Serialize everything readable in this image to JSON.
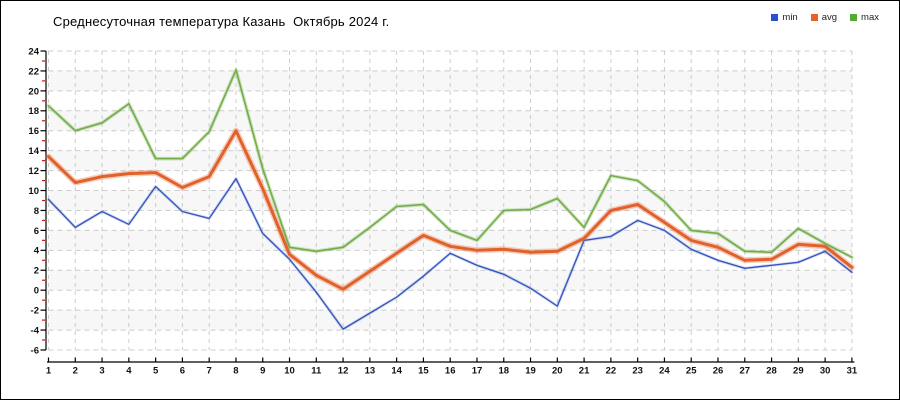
{
  "title": "Среднесуточная температура Казань  Октябрь 2024 г.",
  "legend": [
    {
      "label": "min",
      "color": "#2a50cc"
    },
    {
      "label": "avg",
      "color": "#e8632a"
    },
    {
      "label": "max",
      "color": "#55ab2f"
    }
  ],
  "chart_data": {
    "type": "line",
    "title": "Среднесуточная температура Казань  Октябрь 2024 г.",
    "xlabel": "",
    "ylabel": "",
    "x": [
      1,
      2,
      3,
      4,
      5,
      6,
      7,
      8,
      9,
      10,
      11,
      12,
      13,
      14,
      15,
      16,
      17,
      18,
      19,
      20,
      21,
      22,
      23,
      24,
      25,
      26,
      27,
      28,
      29,
      30,
      31
    ],
    "series": [
      {
        "name": "min",
        "color": "#3558c0",
        "values": [
          9.1,
          6.3,
          7.9,
          6.6,
          10.4,
          7.9,
          7.2,
          11.2,
          5.7,
          3.1,
          -0.2,
          -3.9,
          -2.3,
          -0.7,
          1.4,
          3.7,
          2.5,
          1.6,
          0.2,
          -1.6,
          5.0,
          5.4,
          7.0,
          6.0,
          4.1,
          3.0,
          2.2,
          2.5,
          2.8,
          3.9,
          1.8
        ]
      },
      {
        "name": "avg",
        "color": "#e2612b",
        "values": [
          13.4,
          10.8,
          11.4,
          11.7,
          11.8,
          10.3,
          11.4,
          16.0,
          10.2,
          3.6,
          1.5,
          0.1,
          1.9,
          3.7,
          5.5,
          4.4,
          4.0,
          4.1,
          3.8,
          3.9,
          5.2,
          8.0,
          8.6,
          6.8,
          5.0,
          4.3,
          3.0,
          3.1,
          4.6,
          4.4,
          2.3
        ]
      },
      {
        "name": "max",
        "color": "#72ad47",
        "values": [
          18.5,
          16.0,
          16.8,
          18.7,
          13.2,
          13.2,
          15.9,
          22.1,
          12.2,
          4.3,
          3.9,
          4.3,
          6.3,
          8.4,
          8.6,
          6.0,
          5.0,
          8.0,
          8.1,
          9.2,
          6.3,
          11.5,
          11.0,
          8.9,
          6.0,
          5.7,
          3.9,
          3.8,
          6.2,
          4.7,
          3.3
        ]
      }
    ],
    "ylim": [
      -6,
      24
    ],
    "ytick_step": 2,
    "grid": true,
    "legend_position": "top-right"
  },
  "style_colors": {
    "grid": "#cccccc",
    "band": "#f7f7f7",
    "axis": "#000000",
    "minor_tick": "#cc1111",
    "tick_label": "#111111"
  }
}
